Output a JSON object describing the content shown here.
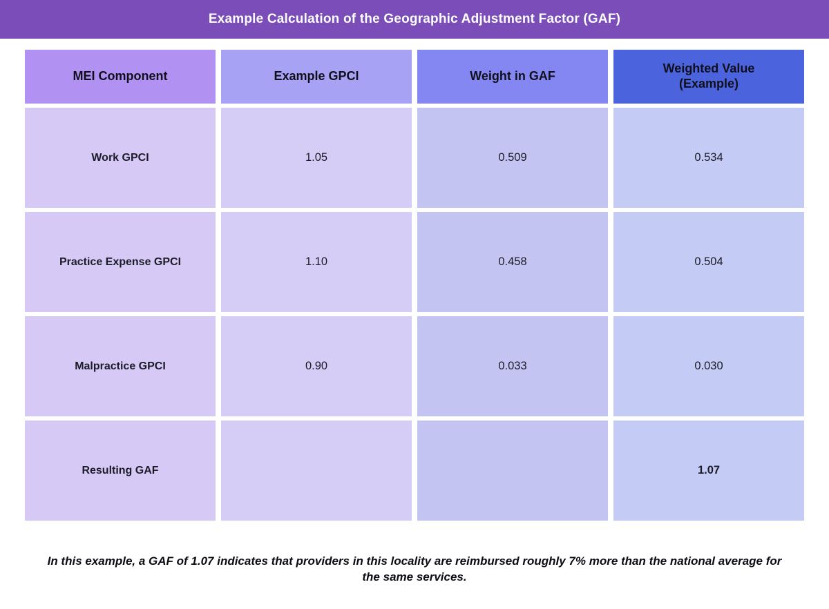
{
  "title": "Example Calculation of the Geographic Adjustment Factor (GAF)",
  "colors": {
    "titlebar_bg": "#7a4db8",
    "header_mei": "#b191f2",
    "header_gpci": "#a7a2f4",
    "header_weight": "#8487f2",
    "header_weighted": "#4c63de",
    "cell_mei": "#d7c9f6",
    "cell_gpci": "#d5cdf6",
    "cell_weight": "#c4c4f3",
    "cell_weighted": "#c4cbf4"
  },
  "table": {
    "columns": [
      {
        "label": "MEI Component"
      },
      {
        "label": "Example GPCI"
      },
      {
        "label": "Weight in GAF"
      },
      {
        "label": "Weighted Value (Example)"
      }
    ],
    "rows": [
      {
        "component": "Work GPCI",
        "gpci": "1.05",
        "weight": "0.509",
        "weighted": "0.534"
      },
      {
        "component": "Practice Expense GPCI",
        "gpci": "1.10",
        "weight": "0.458",
        "weighted": "0.504"
      },
      {
        "component": "Malpractice GPCI",
        "gpci": "0.90",
        "weight": "0.033",
        "weighted": "0.030"
      },
      {
        "component": "Resulting GAF",
        "gpci": "",
        "weight": "",
        "weighted": "1.07"
      }
    ]
  },
  "footnote": "In this example, a GAF of 1.07 indicates that providers in this locality are reimbursed roughly 7% more than the national average for the same services.",
  "chart_data": {
    "type": "table",
    "title": "Example Calculation of the Geographic Adjustment Factor (GAF)",
    "columns": [
      "MEI Component",
      "Example GPCI",
      "Weight in GAF",
      "Weighted Value (Example)"
    ],
    "rows": [
      [
        "Work GPCI",
        1.05,
        0.509,
        0.534
      ],
      [
        "Practice Expense GPCI",
        1.1,
        0.458,
        0.504
      ],
      [
        "Malpractice GPCI",
        0.9,
        0.033,
        0.03
      ],
      [
        "Resulting GAF",
        null,
        null,
        1.07
      ]
    ],
    "note": "In this example, a GAF of 1.07 indicates that providers in this locality are reimbursed roughly 7% more than the national average for the same services."
  }
}
